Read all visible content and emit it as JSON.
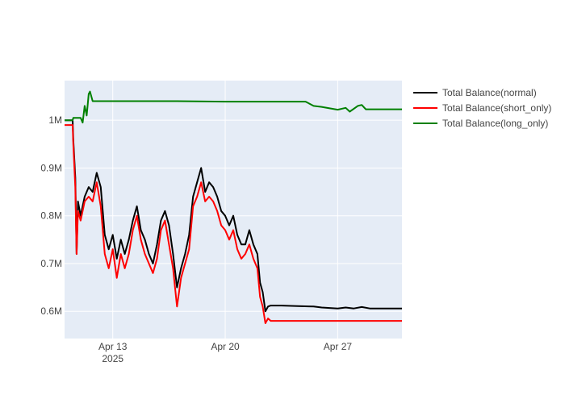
{
  "chart_data": {
    "type": "line",
    "title": "",
    "xlabel": "",
    "ylabel": "",
    "x_range": [
      "2025-04-10T00:00",
      "2025-05-01T00:00"
    ],
    "ylim": [
      543000,
      1083000
    ],
    "x_ticks": [
      {
        "date": "2025-04-13",
        "label": "Apr 13",
        "sublabel": "2025"
      },
      {
        "date": "2025-04-20",
        "label": "Apr 20",
        "sublabel": ""
      },
      {
        "date": "2025-04-27",
        "label": "Apr 27",
        "sublabel": ""
      }
    ],
    "y_ticks": [
      {
        "value": 600000,
        "label": "0.6M"
      },
      {
        "value": 700000,
        "label": "0.7M"
      },
      {
        "value": 800000,
        "label": "0.8M"
      },
      {
        "value": 900000,
        "label": "0.9M"
      },
      {
        "value": 1000000,
        "label": "1M"
      }
    ],
    "grid": true,
    "legend_position": "top-right",
    "series": [
      {
        "name": "Total Balance(normal)",
        "color": "#000000",
        "points": [
          [
            "2025-04-10T00:00",
            1000000
          ],
          [
            "2025-04-10T12:00",
            1000000
          ],
          [
            "2025-04-10T13:00",
            960000
          ],
          [
            "2025-04-10T16:00",
            880000
          ],
          [
            "2025-04-10T18:00",
            720000
          ],
          [
            "2025-04-10T20:00",
            830000
          ],
          [
            "2025-04-11T00:00",
            800000
          ],
          [
            "2025-04-11T06:00",
            840000
          ],
          [
            "2025-04-11T12:00",
            860000
          ],
          [
            "2025-04-11T18:00",
            850000
          ],
          [
            "2025-04-12T00:00",
            890000
          ],
          [
            "2025-04-12T06:00",
            860000
          ],
          [
            "2025-04-12T12:00",
            760000
          ],
          [
            "2025-04-12T18:00",
            730000
          ],
          [
            "2025-04-13T00:00",
            760000
          ],
          [
            "2025-04-13T06:00",
            710000
          ],
          [
            "2025-04-13T12:00",
            750000
          ],
          [
            "2025-04-13T18:00",
            720000
          ],
          [
            "2025-04-14T00:00",
            750000
          ],
          [
            "2025-04-14T06:00",
            790000
          ],
          [
            "2025-04-14T12:00",
            820000
          ],
          [
            "2025-04-14T18:00",
            770000
          ],
          [
            "2025-04-15T00:00",
            750000
          ],
          [
            "2025-04-15T06:00",
            720000
          ],
          [
            "2025-04-15T12:00",
            700000
          ],
          [
            "2025-04-15T18:00",
            740000
          ],
          [
            "2025-04-16T00:00",
            790000
          ],
          [
            "2025-04-16T06:00",
            810000
          ],
          [
            "2025-04-16T12:00",
            780000
          ],
          [
            "2025-04-16T18:00",
            720000
          ],
          [
            "2025-04-17T00:00",
            650000
          ],
          [
            "2025-04-17T06:00",
            690000
          ],
          [
            "2025-04-17T12:00",
            720000
          ],
          [
            "2025-04-17T18:00",
            760000
          ],
          [
            "2025-04-18T00:00",
            840000
          ],
          [
            "2025-04-18T06:00",
            870000
          ],
          [
            "2025-04-18T12:00",
            900000
          ],
          [
            "2025-04-18T18:00",
            850000
          ],
          [
            "2025-04-19T00:00",
            870000
          ],
          [
            "2025-04-19T06:00",
            860000
          ],
          [
            "2025-04-19T12:00",
            840000
          ],
          [
            "2025-04-19T18:00",
            810000
          ],
          [
            "2025-04-20T00:00",
            800000
          ],
          [
            "2025-04-20T06:00",
            780000
          ],
          [
            "2025-04-20T12:00",
            800000
          ],
          [
            "2025-04-20T18:00",
            760000
          ],
          [
            "2025-04-21T00:00",
            740000
          ],
          [
            "2025-04-21T06:00",
            740000
          ],
          [
            "2025-04-21T12:00",
            770000
          ],
          [
            "2025-04-21T18:00",
            740000
          ],
          [
            "2025-04-22T00:00",
            720000
          ],
          [
            "2025-04-22T04:00",
            660000
          ],
          [
            "2025-04-22T08:00",
            640000
          ],
          [
            "2025-04-22T12:00",
            600000
          ],
          [
            "2025-04-22T16:00",
            610000
          ],
          [
            "2025-04-22T20:00",
            612000
          ],
          [
            "2025-04-23T12:00",
            612000
          ],
          [
            "2025-04-24T12:00",
            611000
          ],
          [
            "2025-04-25T12:00",
            610000
          ],
          [
            "2025-04-26T00:00",
            608000
          ],
          [
            "2025-04-26T12:00",
            607000
          ],
          [
            "2025-04-27T00:00",
            606000
          ],
          [
            "2025-04-27T12:00",
            608000
          ],
          [
            "2025-04-28T00:00",
            606000
          ],
          [
            "2025-04-28T12:00",
            609000
          ],
          [
            "2025-04-29T00:00",
            606000
          ],
          [
            "2025-04-30T00:00",
            606000
          ],
          [
            "2025-05-01T00:00",
            606000
          ]
        ]
      },
      {
        "name": "Total Balance(short_only)",
        "color": "#ff0000",
        "points": [
          [
            "2025-04-10T00:00",
            990000
          ],
          [
            "2025-04-10T12:00",
            990000
          ],
          [
            "2025-04-10T13:00",
            950000
          ],
          [
            "2025-04-10T16:00",
            860000
          ],
          [
            "2025-04-10T18:00",
            720000
          ],
          [
            "2025-04-10T20:00",
            810000
          ],
          [
            "2025-04-11T00:00",
            790000
          ],
          [
            "2025-04-11T06:00",
            830000
          ],
          [
            "2025-04-11T12:00",
            840000
          ],
          [
            "2025-04-11T18:00",
            830000
          ],
          [
            "2025-04-12T00:00",
            870000
          ],
          [
            "2025-04-12T06:00",
            820000
          ],
          [
            "2025-04-12T12:00",
            720000
          ],
          [
            "2025-04-12T18:00",
            690000
          ],
          [
            "2025-04-13T00:00",
            730000
          ],
          [
            "2025-04-13T06:00",
            670000
          ],
          [
            "2025-04-13T12:00",
            720000
          ],
          [
            "2025-04-13T18:00",
            690000
          ],
          [
            "2025-04-14T00:00",
            720000
          ],
          [
            "2025-04-14T06:00",
            770000
          ],
          [
            "2025-04-14T12:00",
            800000
          ],
          [
            "2025-04-14T18:00",
            750000
          ],
          [
            "2025-04-15T00:00",
            720000
          ],
          [
            "2025-04-15T06:00",
            700000
          ],
          [
            "2025-04-15T12:00",
            680000
          ],
          [
            "2025-04-15T18:00",
            710000
          ],
          [
            "2025-04-16T00:00",
            770000
          ],
          [
            "2025-04-16T06:00",
            790000
          ],
          [
            "2025-04-16T12:00",
            740000
          ],
          [
            "2025-04-16T18:00",
            690000
          ],
          [
            "2025-04-17T00:00",
            610000
          ],
          [
            "2025-04-17T06:00",
            670000
          ],
          [
            "2025-04-17T12:00",
            700000
          ],
          [
            "2025-04-17T18:00",
            730000
          ],
          [
            "2025-04-18T00:00",
            820000
          ],
          [
            "2025-04-18T06:00",
            840000
          ],
          [
            "2025-04-18T12:00",
            870000
          ],
          [
            "2025-04-18T18:00",
            830000
          ],
          [
            "2025-04-19T00:00",
            840000
          ],
          [
            "2025-04-19T06:00",
            830000
          ],
          [
            "2025-04-19T12:00",
            810000
          ],
          [
            "2025-04-19T18:00",
            780000
          ],
          [
            "2025-04-20T00:00",
            770000
          ],
          [
            "2025-04-20T06:00",
            750000
          ],
          [
            "2025-04-20T12:00",
            770000
          ],
          [
            "2025-04-20T18:00",
            730000
          ],
          [
            "2025-04-21T00:00",
            710000
          ],
          [
            "2025-04-21T06:00",
            720000
          ],
          [
            "2025-04-21T12:00",
            740000
          ],
          [
            "2025-04-21T18:00",
            710000
          ],
          [
            "2025-04-22T00:00",
            690000
          ],
          [
            "2025-04-22T04:00",
            630000
          ],
          [
            "2025-04-22T08:00",
            610000
          ],
          [
            "2025-04-22T12:00",
            575000
          ],
          [
            "2025-04-22T16:00",
            585000
          ],
          [
            "2025-04-22T20:00",
            580000
          ],
          [
            "2025-04-23T12:00",
            580000
          ],
          [
            "2025-04-25T00:00",
            580000
          ],
          [
            "2025-04-28T00:00",
            580000
          ],
          [
            "2025-05-01T00:00",
            580000
          ]
        ]
      },
      {
        "name": "Total Balance(long_only)",
        "color": "#008000",
        "points": [
          [
            "2025-04-10T00:00",
            1000000
          ],
          [
            "2025-04-10T12:00",
            1000000
          ],
          [
            "2025-04-10T13:00",
            1005000
          ],
          [
            "2025-04-11T00:00",
            1005000
          ],
          [
            "2025-04-11T03:00",
            995000
          ],
          [
            "2025-04-11T06:00",
            1030000
          ],
          [
            "2025-04-11T09:00",
            1010000
          ],
          [
            "2025-04-11T12:00",
            1055000
          ],
          [
            "2025-04-11T14:00",
            1060000
          ],
          [
            "2025-04-11T18:00",
            1040000
          ],
          [
            "2025-04-12T00:00",
            1040000
          ],
          [
            "2025-04-14T00:00",
            1040000
          ],
          [
            "2025-04-17T00:00",
            1040000
          ],
          [
            "2025-04-20T00:00",
            1039000
          ],
          [
            "2025-04-23T00:00",
            1039000
          ],
          [
            "2025-04-25T00:00",
            1039000
          ],
          [
            "2025-04-25T12:00",
            1030000
          ],
          [
            "2025-04-26T00:00",
            1028000
          ],
          [
            "2025-04-26T12:00",
            1025000
          ],
          [
            "2025-04-27T00:00",
            1022000
          ],
          [
            "2025-04-27T12:00",
            1026000
          ],
          [
            "2025-04-27T18:00",
            1018000
          ],
          [
            "2025-04-28T06:00",
            1030000
          ],
          [
            "2025-04-28T12:00",
            1032000
          ],
          [
            "2025-04-28T18:00",
            1023000
          ],
          [
            "2025-04-29T00:00",
            1023000
          ],
          [
            "2025-05-01T00:00",
            1023000
          ]
        ]
      }
    ]
  }
}
